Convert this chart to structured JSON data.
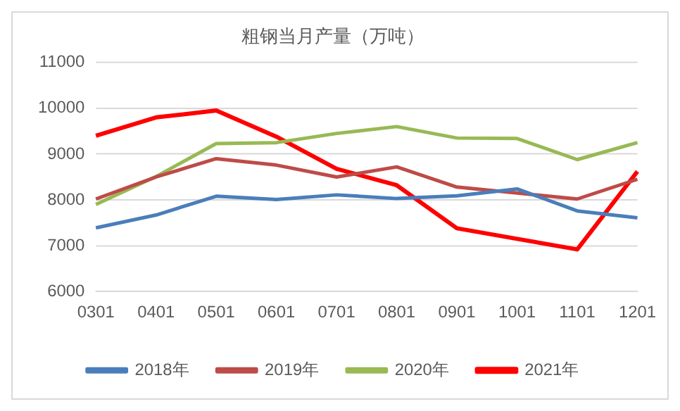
{
  "chart_data": {
    "type": "line",
    "title": "粗钢当月产量（万吨）",
    "categories": [
      "0301",
      "0401",
      "0501",
      "0601",
      "0701",
      "0801",
      "0901",
      "1001",
      "1101",
      "1201"
    ],
    "series": [
      {
        "name": "2018年",
        "color": "#4a7ebb",
        "values": [
          7390,
          7670,
          8080,
          8010,
          8110,
          8030,
          8090,
          8240,
          7760,
          7610
        ]
      },
      {
        "name": "2019年",
        "color": "#be4b48",
        "values": [
          8020,
          8500,
          8900,
          8760,
          8500,
          8720,
          8280,
          8150,
          8020,
          8450
        ]
      },
      {
        "name": "2020年",
        "color": "#98b954",
        "values": [
          7900,
          8510,
          9230,
          9250,
          9450,
          9600,
          9350,
          9340,
          8880,
          9250
        ]
      },
      {
        "name": "2021年",
        "color": "#ff0000",
        "values": [
          9400,
          9800,
          9950,
          9380,
          8680,
          8320,
          7380,
          7150,
          6920,
          8620
        ]
      }
    ],
    "ylim": [
      6000,
      11000
    ],
    "yticks": [
      6000,
      7000,
      8000,
      9000,
      10000,
      11000
    ],
    "grid": "y",
    "legend": "bottom",
    "marker": "none",
    "line_style": "solid"
  }
}
